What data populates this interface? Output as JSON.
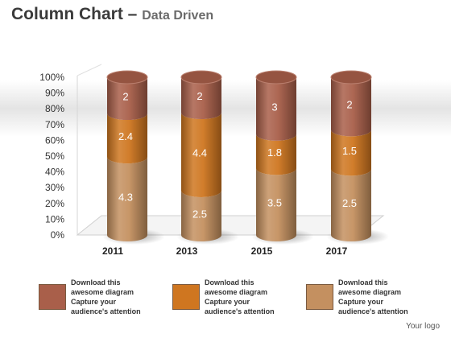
{
  "title": {
    "main": "Column Chart",
    "dash": " – ",
    "sub": "Data Driven"
  },
  "chart_data": {
    "type": "bar",
    "stacked": true,
    "normalized": true,
    "categories": [
      "2011",
      "2013",
      "2015",
      "2017"
    ],
    "series": [
      {
        "values": [
          4.3,
          2.5,
          3.5,
          2.5
        ],
        "color": "#c49060"
      },
      {
        "values": [
          2.4,
          4.4,
          1.8,
          1.5
        ],
        "color": "#cf7620"
      },
      {
        "values": [
          2,
          2,
          3,
          2
        ],
        "color": "#a95f4a"
      }
    ],
    "y_ticks": [
      "0%",
      "10%",
      "20%",
      "30%",
      "40%",
      "50%",
      "60%",
      "70%",
      "80%",
      "90%",
      "100%"
    ],
    "ylim": [
      0,
      100
    ],
    "grid": false
  },
  "legend": [
    {
      "color": "#a95f4a",
      "lines": [
        "Download this",
        "awesome diagram",
        "Capture your",
        "audience's attention"
      ]
    },
    {
      "color": "#cf7620",
      "lines": [
        "Download this",
        "awesome diagram",
        "Capture your",
        "audience's attention"
      ]
    },
    {
      "color": "#c49060",
      "lines": [
        "Download this",
        "awesome diagram",
        "Capture your",
        "audience's attention"
      ]
    }
  ],
  "footer": "Your logo"
}
